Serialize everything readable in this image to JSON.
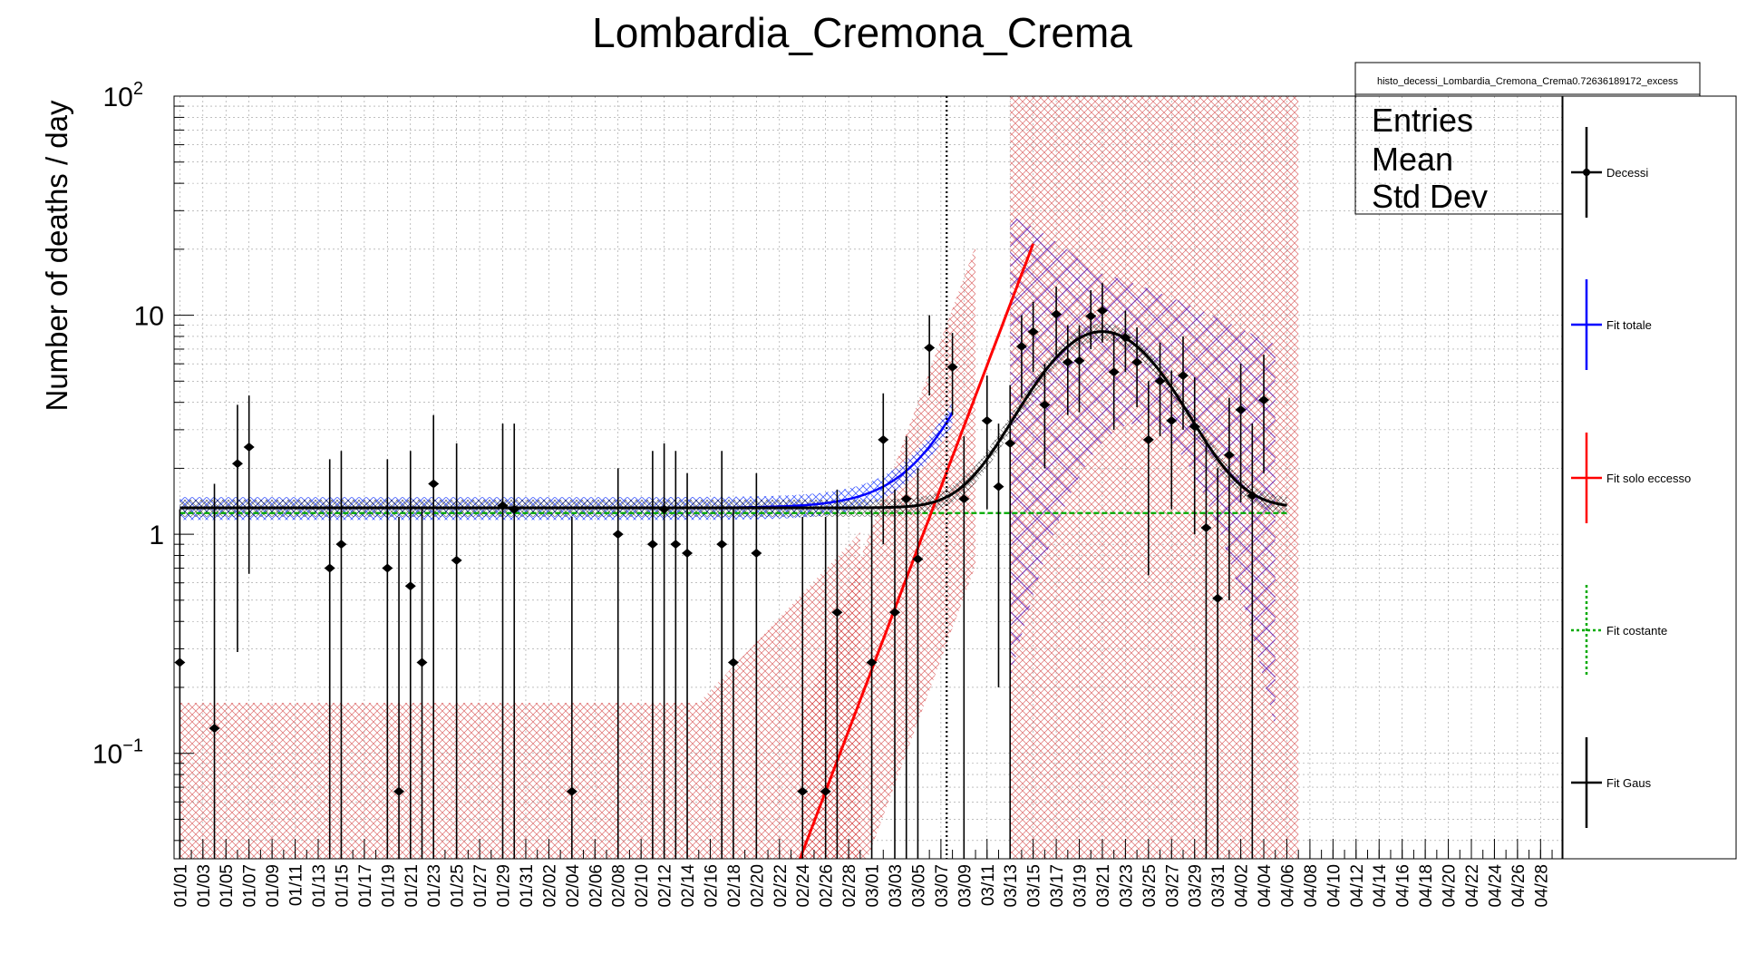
{
  "chart_data": {
    "type": "scatter",
    "title": "Lombardia_Cremona_Crema",
    "ylabel": "Number of deaths / day",
    "xlabel": "",
    "y_scale": "log",
    "ylim": [
      0.033,
      100
    ],
    "y_ticks": [
      {
        "value": 0.1,
        "label": "10",
        "sup": "−1"
      },
      {
        "value": 1,
        "label": "1",
        "sup": ""
      },
      {
        "value": 10,
        "label": "10",
        "sup": ""
      },
      {
        "value": 100,
        "label": "10",
        "sup": "2"
      }
    ],
    "x_labels": [
      "01/01",
      "01/03",
      "01/05",
      "01/07",
      "01/09",
      "01/11",
      "01/13",
      "01/15",
      "01/17",
      "01/19",
      "01/21",
      "01/23",
      "01/25",
      "01/27",
      "01/29",
      "01/31",
      "02/02",
      "02/04",
      "02/06",
      "02/08",
      "02/10",
      "02/12",
      "02/14",
      "02/16",
      "02/18",
      "02/20",
      "02/22",
      "02/24",
      "02/26",
      "02/28",
      "03/01",
      "03/03",
      "03/05",
      "03/07",
      "03/09",
      "03/11",
      "03/13",
      "03/15",
      "03/17",
      "03/19",
      "03/21",
      "03/23",
      "03/25",
      "03/27",
      "03/29",
      "03/31",
      "04/02",
      "04/04",
      "04/06",
      "04/08",
      "04/10",
      "04/12",
      "04/14",
      "04/16",
      "04/18",
      "04/20",
      "04/22",
      "04/24",
      "04/26",
      "04/28"
    ],
    "grid": true,
    "vertical_marker_day": 67.5,
    "stats_box": {
      "name": "histo_decessi_Lombardia_Cremona_Crema0.72636189172_excess",
      "rows": [
        "Entries",
        "Mean",
        "Std Dev"
      ]
    },
    "legend": {
      "position": "right",
      "entries": [
        {
          "label": "Decessi",
          "color": "#000000",
          "style": "marker"
        },
        {
          "label": "Fit totale",
          "color": "#0000ff",
          "style": "line"
        },
        {
          "label": "Fit solo eccesso",
          "color": "#ff0000",
          "style": "line"
        },
        {
          "label": "Fit costante",
          "color": "#00aa00",
          "style": "dashed"
        },
        {
          "label": "Fit Gaus",
          "color": "#000000",
          "style": "line"
        }
      ]
    },
    "series": [
      {
        "name": "Decessi",
        "points": [
          {
            "day": 1,
            "y": 0.26,
            "lo": 0.033,
            "hi": 1.3
          },
          {
            "day": 4,
            "y": 0.13,
            "lo": 0.033,
            "hi": 1.7
          },
          {
            "day": 6,
            "y": 2.1,
            "lo": 0.29,
            "hi": 3.9
          },
          {
            "day": 7,
            "y": 2.5,
            "lo": 0.66,
            "hi": 4.3
          },
          {
            "day": 14,
            "y": 0.7,
            "lo": 0.033,
            "hi": 2.2
          },
          {
            "day": 15,
            "y": 0.9,
            "lo": 0.033,
            "hi": 2.4
          },
          {
            "day": 19,
            "y": 0.7,
            "lo": 0.033,
            "hi": 2.2
          },
          {
            "day": 20,
            "y": 0.067,
            "lo": 0.033,
            "hi": 1.2
          },
          {
            "day": 21,
            "y": 0.58,
            "lo": 0.033,
            "hi": 2.4
          },
          {
            "day": 22,
            "y": 0.26,
            "lo": 0.033,
            "hi": 1.3
          },
          {
            "day": 23,
            "y": 1.7,
            "lo": 0.033,
            "hi": 3.5
          },
          {
            "day": 25,
            "y": 0.76,
            "lo": 0.033,
            "hi": 2.6
          },
          {
            "day": 29,
            "y": 1.35,
            "lo": 0.033,
            "hi": 3.2
          },
          {
            "day": 30,
            "y": 1.3,
            "lo": 0.033,
            "hi": 3.2
          },
          {
            "day": 35,
            "y": 0.067,
            "lo": 0.033,
            "hi": 1.2
          },
          {
            "day": 39,
            "y": 1.0,
            "lo": 0.033,
            "hi": 2.0
          },
          {
            "day": 42,
            "y": 0.9,
            "lo": 0.033,
            "hi": 2.4
          },
          {
            "day": 43,
            "y": 1.3,
            "lo": 0.033,
            "hi": 2.6
          },
          {
            "day": 44,
            "y": 0.9,
            "lo": 0.033,
            "hi": 2.4
          },
          {
            "day": 45,
            "y": 0.82,
            "lo": 0.033,
            "hi": 1.9
          },
          {
            "day": 48,
            "y": 0.9,
            "lo": 0.033,
            "hi": 2.4
          },
          {
            "day": 49,
            "y": 0.26,
            "lo": 0.033,
            "hi": 1.3
          },
          {
            "day": 51,
            "y": 0.82,
            "lo": 0.033,
            "hi": 1.9
          },
          {
            "day": 55,
            "y": 0.067,
            "lo": 0.033,
            "hi": 1.2
          },
          {
            "day": 57,
            "y": 0.067,
            "lo": 0.033,
            "hi": 1.2
          },
          {
            "day": 58,
            "y": 0.44,
            "lo": 0.033,
            "hi": 1.6
          },
          {
            "day": 61,
            "y": 0.26,
            "lo": 0.033,
            "hi": 1.3
          },
          {
            "day": 62,
            "y": 2.7,
            "lo": 0.9,
            "hi": 4.4
          },
          {
            "day": 63,
            "y": 0.44,
            "lo": 0.033,
            "hi": 1.6
          },
          {
            "day": 64,
            "y": 1.45,
            "lo": 0.033,
            "hi": 2.8
          },
          {
            "day": 65,
            "y": 0.77,
            "lo": 0.033,
            "hi": 2.0
          },
          {
            "day": 66,
            "y": 7.1,
            "lo": 4.3,
            "hi": 10
          },
          {
            "day": 68,
            "y": 5.8,
            "lo": 3.5,
            "hi": 8.3
          },
          {
            "day": 69,
            "y": 1.45,
            "lo": 0.033,
            "hi": 2.8
          },
          {
            "day": 71,
            "y": 3.3,
            "lo": 1.3,
            "hi": 5.3
          },
          {
            "day": 72,
            "y": 1.65,
            "lo": 0.2,
            "hi": 3.2
          },
          {
            "day": 73,
            "y": 2.6,
            "lo": 0.033,
            "hi": 4.8
          },
          {
            "day": 74,
            "y": 7.2,
            "lo": 4.2,
            "hi": 10
          },
          {
            "day": 75,
            "y": 8.4,
            "lo": 5.5,
            "hi": 11.5
          },
          {
            "day": 76,
            "y": 3.9,
            "lo": 2.0,
            "hi": 6.0
          },
          {
            "day": 77,
            "y": 10.1,
            "lo": 6.5,
            "hi": 13.5
          },
          {
            "day": 78,
            "y": 6.1,
            "lo": 3.5,
            "hi": 9.0
          },
          {
            "day": 79,
            "y": 6.2,
            "lo": 3.6,
            "hi": 9.0
          },
          {
            "day": 80,
            "y": 9.9,
            "lo": 7.0,
            "hi": 13
          },
          {
            "day": 81,
            "y": 10.5,
            "lo": 7.5,
            "hi": 14
          },
          {
            "day": 82,
            "y": 5.5,
            "lo": 3.0,
            "hi": 8.2
          },
          {
            "day": 83,
            "y": 7.9,
            "lo": 5.5,
            "hi": 10.5
          },
          {
            "day": 84,
            "y": 6.1,
            "lo": 3.8,
            "hi": 8.8
          },
          {
            "day": 85,
            "y": 2.7,
            "lo": 0.65,
            "hi": 5.0
          },
          {
            "day": 86,
            "y": 5.0,
            "lo": 2.8,
            "hi": 7.5
          },
          {
            "day": 87,
            "y": 3.3,
            "lo": 1.3,
            "hi": 5.6
          },
          {
            "day": 88,
            "y": 5.3,
            "lo": 3.0,
            "hi": 8.0
          },
          {
            "day": 89,
            "y": 3.1,
            "lo": 1.0,
            "hi": 5.2
          },
          {
            "day": 90,
            "y": 1.07,
            "lo": 0.033,
            "hi": 2.6
          },
          {
            "day": 91,
            "y": 0.51,
            "lo": 0.033,
            "hi": 2.0
          },
          {
            "day": 92,
            "y": 2.3,
            "lo": 0.5,
            "hi": 4.2
          },
          {
            "day": 93,
            "y": 3.7,
            "lo": 1.4,
            "hi": 6.0
          },
          {
            "day": 94,
            "y": 1.5,
            "lo": 0.033,
            "hi": 3.2
          },
          {
            "day": 95,
            "y": 4.1,
            "lo": 1.9,
            "hi": 6.6
          }
        ]
      }
    ]
  }
}
